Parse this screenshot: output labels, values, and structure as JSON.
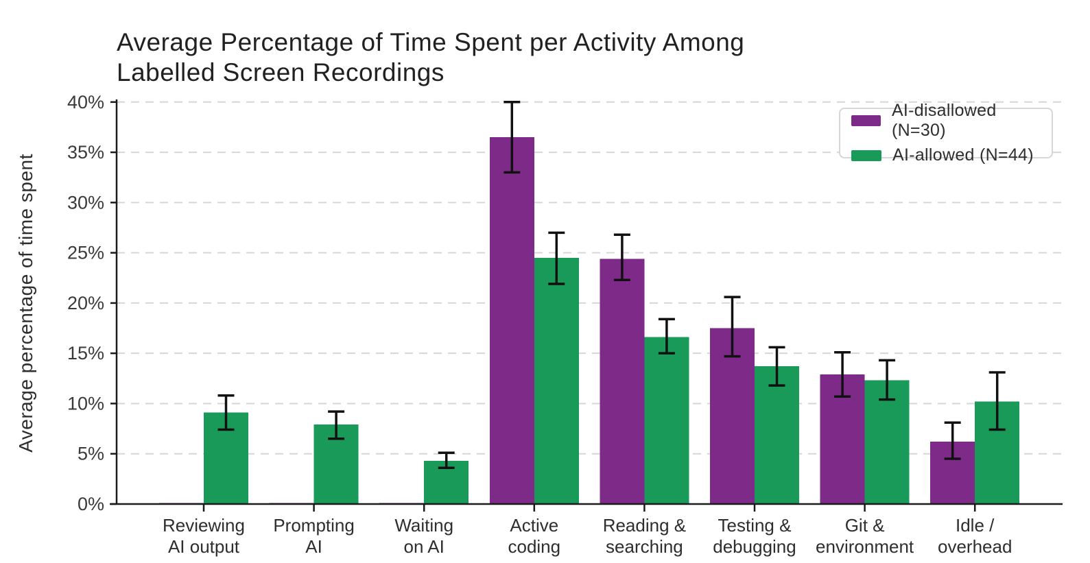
{
  "title": {
    "line1": "Average Percentage of Time Spent per Activity Among",
    "line2": "Labelled Screen Recordings"
  },
  "legend": {
    "items": [
      {
        "label": "AI-disallowed (N=30)",
        "color": "#7e2a88"
      },
      {
        "label": "AI-allowed (N=44)",
        "color": "#1a9a58"
      }
    ]
  },
  "chart_data": {
    "type": "bar",
    "title": "Average Percentage of Time Spent per Activity Among Labelled Screen Recordings",
    "ylabel": "Average percentage of time spent",
    "xlabel": "",
    "ylim": [
      0,
      40
    ],
    "ytick_step": 5,
    "yticks": [
      "0%",
      "5%",
      "10%",
      "15%",
      "20%",
      "25%",
      "30%",
      "35%",
      "40%"
    ],
    "grid": "horizontal-dashed",
    "legend_position": "top-right",
    "categories": [
      "Reviewing\nAI output",
      "Prompting\nAI",
      "Waiting\non AI",
      "Active\ncoding",
      "Reading &\nsearching",
      "Testing &\ndebugging",
      "Git &\nenvironment",
      "Idle /\noverhead"
    ],
    "series": [
      {
        "name": "AI-disallowed (N=30)",
        "color": "#7e2a88",
        "values": [
          0.1,
          0.1,
          0.1,
          36.5,
          24.4,
          17.5,
          12.9,
          6.2
        ],
        "error_low": [
          null,
          null,
          null,
          33.0,
          22.3,
          14.7,
          10.7,
          4.5
        ],
        "error_high": [
          null,
          null,
          null,
          40.0,
          26.8,
          20.6,
          15.1,
          8.1
        ]
      },
      {
        "name": "AI-allowed (N=44)",
        "color": "#1a9a58",
        "values": [
          9.1,
          7.9,
          4.3,
          24.5,
          16.6,
          13.7,
          12.3,
          10.2
        ],
        "error_low": [
          7.4,
          6.5,
          3.6,
          21.9,
          15.0,
          11.8,
          10.4,
          7.4
        ],
        "error_high": [
          10.8,
          9.2,
          5.1,
          27.0,
          18.4,
          15.6,
          14.3,
          13.1
        ]
      }
    ]
  }
}
